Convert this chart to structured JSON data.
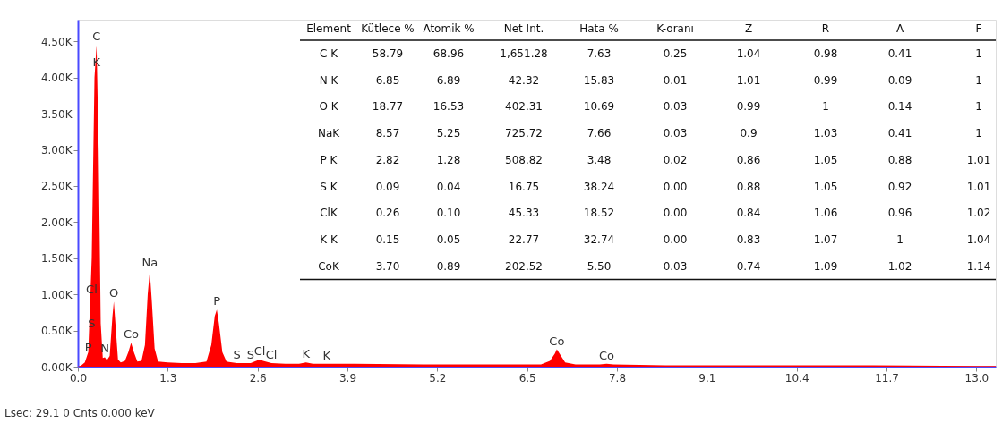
{
  "chart_data": {
    "type": "area",
    "x": [
      0.0,
      0.05,
      0.1,
      0.15,
      0.2,
      0.24,
      0.27,
      0.3,
      0.33,
      0.36,
      0.39,
      0.42,
      0.46,
      0.5,
      0.52,
      0.55,
      0.58,
      0.62,
      0.68,
      0.73,
      0.77,
      0.81,
      0.86,
      0.92,
      0.97,
      1.01,
      1.04,
      1.07,
      1.11,
      1.16,
      1.3,
      1.5,
      1.7,
      1.86,
      1.93,
      1.98,
      2.01,
      2.04,
      2.09,
      2.15,
      2.3,
      2.5,
      2.58,
      2.63,
      2.68,
      2.8,
      3.0,
      3.2,
      3.3,
      3.4,
      3.6,
      4.0,
      5.0,
      6.0,
      6.7,
      6.83,
      6.9,
      6.93,
      6.97,
      7.05,
      7.2,
      7.55,
      7.65,
      7.75,
      8.5,
      10.0,
      11.5,
      13.0,
      13.28
    ],
    "series": [
      {
        "color": "#ff0000",
        "values": [
          0,
          20,
          60,
          200,
          1500,
          4000,
          4450,
          3000,
          600,
          120,
          130,
          90,
          150,
          700,
          900,
          500,
          100,
          60,
          80,
          200,
          330,
          200,
          70,
          80,
          300,
          1000,
          1320,
          900,
          250,
          70,
          60,
          50,
          50,
          70,
          300,
          700,
          790,
          600,
          200,
          70,
          50,
          50,
          80,
          100,
          80,
          50,
          40,
          40,
          60,
          40,
          40,
          40,
          30,
          30,
          30,
          80,
          180,
          240,
          180,
          60,
          30,
          30,
          40,
          30,
          20,
          20,
          20,
          10,
          10
        ]
      }
    ],
    "xlim": [
      0,
      13.28
    ],
    "ylim": [
      0,
      4800
    ],
    "xticks": [
      {
        "value": 0,
        "label": "0.0"
      },
      1.3,
      2.6,
      3.9,
      5.2,
      6.5,
      7.8,
      9.1,
      10.4,
      11.7,
      {
        "value": 13,
        "label": "13.0"
      }
    ],
    "yticks": [
      {
        "value": 0,
        "label": "0.00K"
      },
      {
        "value": 500,
        "label": "0.50K"
      },
      {
        "value": 1000,
        "label": "1.00K"
      },
      {
        "value": 1500,
        "label": "1.50K"
      },
      {
        "value": 2000,
        "label": "2.00K"
      },
      {
        "value": 2500,
        "label": "2.50K"
      },
      {
        "value": 3000,
        "label": "3.00K"
      },
      {
        "value": 3500,
        "label": "3.50K"
      },
      {
        "value": 4000,
        "label": "4.00K"
      },
      {
        "value": 4500,
        "label": "4.50K"
      }
    ],
    "grid": false,
    "annotations": [
      {
        "text": "C",
        "x": 0.27,
        "y": 4450
      },
      {
        "text": "K",
        "x": 0.27,
        "y": 4100
      },
      {
        "text": "Cl",
        "x": 0.2,
        "y": 950
      },
      {
        "text": "S",
        "x": 0.2,
        "y": 480
      },
      {
        "text": "P",
        "x": 0.15,
        "y": 150
      },
      {
        "text": "N",
        "x": 0.39,
        "y": 130
      },
      {
        "text": "O",
        "x": 0.52,
        "y": 900
      },
      {
        "text": "Co",
        "x": 0.77,
        "y": 330
      },
      {
        "text": "Na",
        "x": 1.04,
        "y": 1320
      },
      {
        "text": "P",
        "x": 2.01,
        "y": 790
      },
      {
        "text": "S",
        "x": 2.3,
        "y": 50
      },
      {
        "text": "S",
        "x": 2.5,
        "y": 50
      },
      {
        "text": "Cl",
        "x": 2.63,
        "y": 100
      },
      {
        "text": "Cl",
        "x": 2.8,
        "y": 50
      },
      {
        "text": "K",
        "x": 3.3,
        "y": 60
      },
      {
        "text": "K",
        "x": 3.6,
        "y": 40
      },
      {
        "text": "Co",
        "x": 6.93,
        "y": 240
      },
      {
        "text": "Co",
        "x": 7.65,
        "y": 40
      },
      "Element",
      "Kütlece %",
      "Atomik %",
      "Net Int.",
      "Hata %",
      "K-oranı",
      "Z",
      "R",
      "A",
      "F",
      "C K",
      "58.79",
      "68.96",
      "1,651.28",
      "7.63",
      "0.25",
      "1.04",
      "0.98",
      "0.41",
      "1",
      "N K",
      "6.85",
      "6.89",
      "42.32",
      "15.83",
      "0.01",
      "1.01",
      "0.99",
      "0.09",
      "1",
      "O K",
      "18.77",
      "16.53",
      "402.31",
      "10.69",
      "0.03",
      "0.99",
      "1",
      "0.14",
      "1",
      "NaK",
      "8.57",
      "5.25",
      "725.72",
      "7.66",
      "0.03",
      "0.9",
      "1.03",
      "0.41",
      "1",
      "P K",
      "2.82",
      "1.28",
      "508.82",
      "3.48",
      "0.02",
      "0.86",
      "1.05",
      "0.88",
      "1.01",
      "S K",
      "0.09",
      "0.04",
      "16.75",
      "38.24",
      "0.00",
      "0.88",
      "1.05",
      "0.92",
      "1.01",
      "ClK",
      "0.26",
      "0.10",
      "45.33",
      "18.52",
      "0.00",
      "0.84",
      "1.06",
      "0.96",
      "1.02",
      "K K",
      "0.15",
      "0.05",
      "22.77",
      "32.74",
      "0.00",
      "0.83",
      "1.07",
      "1",
      "1.04",
      "CoK",
      "3.70",
      "0.89",
      "202.52",
      "5.50",
      "0.03",
      "0.74",
      "1.09",
      "1.02",
      "1.14",
      "Lsec: 29.1 0 Cnts 0.000 keV"
    ]
  }
}
